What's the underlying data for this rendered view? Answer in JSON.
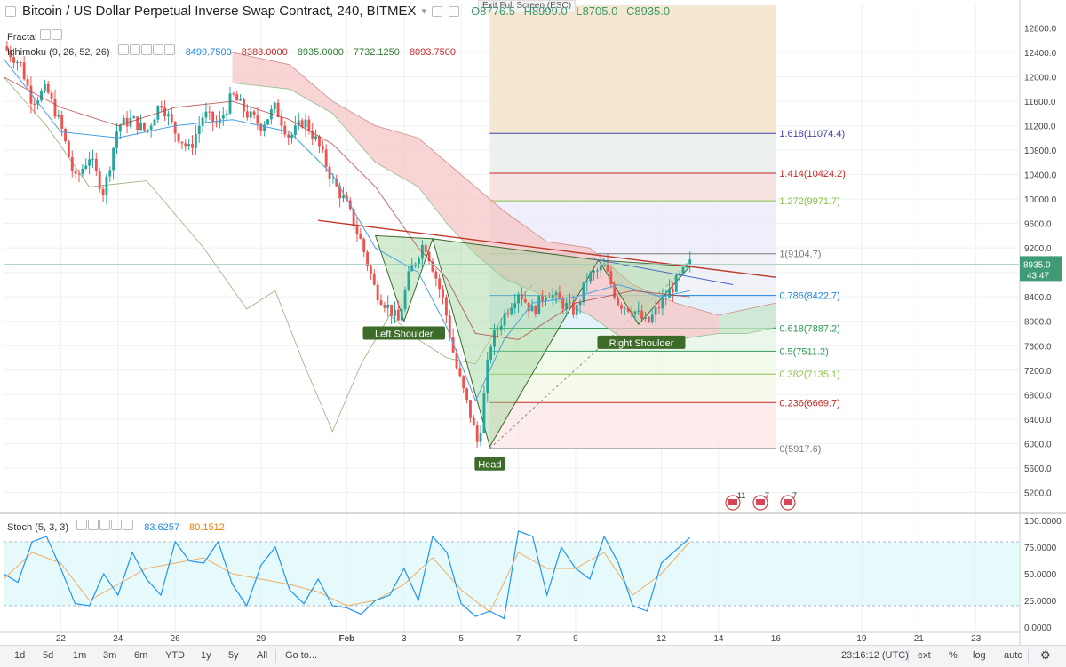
{
  "header": {
    "title": "Bitcoin / US Dollar Perpetual Inverse Swap Contract, 240, BITMEX",
    "ohlc": {
      "o": "O8776.5",
      "h": "H8999.0",
      "l": "L8705.0",
      "c": "C8935.0"
    },
    "exit_fullscreen": "Exit Full Screen (ESC)"
  },
  "indicators": {
    "fractal": "Fractal",
    "ichimoku": {
      "label": "Ichimoku (9, 26, 52, 26)",
      "values": [
        "8499.7500",
        "8388.0000",
        "8935.0000",
        "7732.1250",
        "8093.7500"
      ]
    },
    "stoch": {
      "label": "Stoch (5, 3, 3)",
      "values": [
        "83.6257",
        "80.1512"
      ]
    }
  },
  "colors": {
    "up": "#26a69a",
    "down": "#ef5350",
    "tenkan": "#4aa0e0",
    "kijun": "#b0383a",
    "chikou": "#7a9a5a",
    "cloud_bull": "#c8e6c9",
    "cloud_bear": "#f6c6c6",
    "stoch_k": "#2196f3",
    "stoch_d": "#f57c00",
    "neckline": "#c0392b",
    "pattern": "#3a6a2a"
  },
  "chart_data": {
    "type": "candlestick",
    "title": "Bitcoin / US Dollar Perpetual Inverse Swap Contract, 240, BITMEX",
    "ylim": [
      4900,
      13200
    ],
    "y_ticks": [
      "12800.0",
      "12400.0",
      "12000.0",
      "11600.0",
      "11200.0",
      "10800.0",
      "10400.0",
      "10000.0",
      "9600.0",
      "9200.0",
      "8800.0",
      "8400.0",
      "8000.0",
      "7600.0",
      "7200.0",
      "6800.0",
      "6400.0",
      "6000.0",
      "5600.0",
      "5200.0"
    ],
    "x_range": [
      20,
      25
    ],
    "x_ticks": [
      {
        "x": 22,
        "label": "22"
      },
      {
        "x": 24,
        "label": "24"
      },
      {
        "x": 26,
        "label": "26"
      },
      {
        "x": 29,
        "label": "29"
      },
      {
        "x": 32,
        "label": "Feb"
      },
      {
        "x": 34,
        "label": "3"
      },
      {
        "x": 36,
        "label": "5"
      },
      {
        "x": 38,
        "label": "7"
      },
      {
        "x": 40,
        "label": "9"
      },
      {
        "x": 43,
        "label": "12"
      },
      {
        "x": 45,
        "label": "14"
      },
      {
        "x": 47,
        "label": "16"
      },
      {
        "x": 50,
        "label": "19"
      },
      {
        "x": 52,
        "label": "21"
      },
      {
        "x": 54,
        "label": "23"
      }
    ],
    "current_price": {
      "label": "8935.0",
      "value": 8935,
      "countdown": "43:47"
    },
    "price_path": [
      [
        20.0,
        12500
      ],
      [
        20.6,
        12200
      ],
      [
        21.0,
        11600
      ],
      [
        21.5,
        11800
      ],
      [
        22.0,
        11200
      ],
      [
        22.5,
        10300
      ],
      [
        23.0,
        10700
      ],
      [
        23.5,
        10100
      ],
      [
        24.0,
        11200
      ],
      [
        24.5,
        11300
      ],
      [
        25.0,
        11100
      ],
      [
        25.5,
        11600
      ],
      [
        26.0,
        11100
      ],
      [
        26.5,
        10800
      ],
      [
        27.0,
        11400
      ],
      [
        27.5,
        11200
      ],
      [
        28.0,
        11700
      ],
      [
        28.5,
        11400
      ],
      [
        29.0,
        11200
      ],
      [
        29.5,
        11500
      ],
      [
        30.0,
        11000
      ],
      [
        30.5,
        11300
      ],
      [
        31.0,
        10900
      ],
      [
        31.5,
        10300
      ],
      [
        32.0,
        9900
      ],
      [
        32.5,
        9300
      ],
      [
        33.0,
        8500
      ],
      [
        33.5,
        8200
      ],
      [
        33.8,
        8000
      ],
      [
        34.2,
        8800
      ],
      [
        34.7,
        9300
      ],
      [
        35.0,
        8900
      ],
      [
        35.4,
        8300
      ],
      [
        35.8,
        7300
      ],
      [
        36.3,
        6500
      ],
      [
        36.6,
        5950
      ],
      [
        37.0,
        7600
      ],
      [
        37.5,
        8100
      ],
      [
        38.0,
        8500
      ],
      [
        38.5,
        8150
      ],
      [
        39.0,
        8500
      ],
      [
        39.5,
        8300
      ],
      [
        40.0,
        8150
      ],
      [
        40.4,
        8700
      ],
      [
        41.0,
        8900
      ],
      [
        41.5,
        8300
      ],
      [
        42.0,
        8200
      ],
      [
        42.5,
        7950
      ],
      [
        43.0,
        8300
      ],
      [
        43.6,
        8700
      ],
      [
        44.0,
        8935
      ]
    ],
    "ichimoku": {
      "tenkan": [
        [
          20,
          12300
        ],
        [
          22,
          11100
        ],
        [
          24,
          11000
        ],
        [
          26,
          11200
        ],
        [
          28,
          11300
        ],
        [
          30,
          11100
        ],
        [
          31.5,
          10400
        ],
        [
          33,
          9200
        ],
        [
          34.5,
          8800
        ],
        [
          35.5,
          7900
        ],
        [
          36.5,
          6700
        ],
        [
          37.5,
          7700
        ],
        [
          38.5,
          8300
        ],
        [
          40,
          8400
        ],
        [
          41.5,
          8600
        ],
        [
          43,
          8400
        ],
        [
          44,
          8500
        ]
      ],
      "kijun": [
        [
          20,
          12000
        ],
        [
          22,
          11500
        ],
        [
          24,
          11200
        ],
        [
          26,
          11500
        ],
        [
          28,
          11600
        ],
        [
          30,
          11300
        ],
        [
          31.5,
          10900
        ],
        [
          33,
          10200
        ],
        [
          34.5,
          9200
        ],
        [
          35.5,
          8700
        ],
        [
          36.5,
          7800
        ],
        [
          38,
          7700
        ],
        [
          40,
          8300
        ],
        [
          42,
          8500
        ],
        [
          44,
          8400
        ]
      ],
      "chikou": [
        [
          20,
          12000
        ],
        [
          21.5,
          11200
        ],
        [
          23,
          10200
        ],
        [
          25,
          10300
        ],
        [
          27,
          9200
        ],
        [
          28.5,
          8200
        ],
        [
          29.5,
          8500
        ],
        [
          30.5,
          7300
        ],
        [
          31.5,
          6200
        ],
        [
          32.5,
          7300
        ],
        [
          33.5,
          8100
        ],
        [
          34.5,
          7700
        ],
        [
          35.5,
          7400
        ],
        [
          36.5,
          7300
        ],
        [
          37.5,
          8100
        ],
        [
          38.5,
          8600
        ]
      ],
      "cloud": [
        [
          28,
          12400,
          11900
        ],
        [
          30,
          12200,
          11800
        ],
        [
          31.5,
          11600,
          11400
        ],
        [
          33,
          11200,
          10600
        ],
        [
          34.5,
          11000,
          10200
        ],
        [
          35.5,
          10600,
          9600
        ],
        [
          36.5,
          10200,
          9100
        ],
        [
          37.5,
          9800,
          8700
        ],
        [
          39,
          9300,
          8400
        ],
        [
          40.5,
          9200,
          8100
        ],
        [
          42,
          8600,
          7600
        ],
        [
          43.5,
          8300,
          7700
        ],
        [
          45,
          8100,
          7800
        ],
        [
          46,
          8200,
          7800
        ],
        [
          47,
          8300,
          7900
        ]
      ]
    },
    "fib_retracement": {
      "x_start": 37,
      "x_end": 47,
      "levels": [
        {
          "ratio": "1.618",
          "value": 11074.4,
          "label": "1.618(11074.4)",
          "color": "#3f3faa"
        },
        {
          "ratio": "1.414",
          "value": 10424.2,
          "label": "1.414(10424.2)",
          "color": "#c62828"
        },
        {
          "ratio": "1.272",
          "value": 9971.7,
          "label": "1.272(9971.7)",
          "color": "#8bc34a"
        },
        {
          "ratio": "1",
          "value": 9104.7,
          "label": "1(9104.7)",
          "color": "#777777"
        },
        {
          "ratio": "0.786",
          "value": 8422.7,
          "label": "0.786(8422.7)",
          "color": "#1e88e5"
        },
        {
          "ratio": "0.618",
          "value": 7887.2,
          "label": "0.618(7887.2)",
          "color": "#2e9a5a"
        },
        {
          "ratio": "0.5",
          "value": 7511.2,
          "label": "0.5(7511.2)",
          "color": "#2e9a5a"
        },
        {
          "ratio": "0.382",
          "value": 7135.1,
          "label": "0.382(7135.1)",
          "color": "#8bc34a"
        },
        {
          "ratio": "0.236",
          "value": 6669.7,
          "label": "0.236(6669.7)",
          "color": "#c62828"
        },
        {
          "ratio": "0",
          "value": 5917.6,
          "label": "0(5917.6)",
          "color": "#777777"
        }
      ]
    },
    "pattern": {
      "name": "inverse head and shoulders",
      "neckline": [
        [
          31.0,
          9650
        ],
        [
          47.0,
          8720
        ]
      ],
      "shoulder_left_points": [
        [
          33.0,
          9400
        ],
        [
          34.0,
          8000
        ],
        [
          35.0,
          9350
        ]
      ],
      "head_points": [
        [
          35.0,
          9350
        ],
        [
          37.0,
          5950
        ],
        [
          40.8,
          9000
        ]
      ],
      "shoulder_right_points": [
        [
          40.8,
          9000
        ],
        [
          42.2,
          7950
        ],
        [
          44.0,
          8900
        ]
      ],
      "labels": [
        {
          "text": "Left Shoulder",
          "x": 34.0,
          "y": 7800
        },
        {
          "text": "Head",
          "x": 37.0,
          "y": 5660
        },
        {
          "text": "Right Shoulder",
          "x": 42.3,
          "y": 7650
        }
      ]
    },
    "stoch": {
      "ylim": [
        -5,
        105
      ],
      "y_ticks": [
        "100.0000",
        "75.0000",
        "50.0000",
        "25.0000",
        "0.0000"
      ],
      "bands": [
        80,
        20
      ],
      "k": [
        [
          20,
          50
        ],
        [
          20.5,
          42
        ],
        [
          21,
          80
        ],
        [
          21.5,
          85
        ],
        [
          22,
          55
        ],
        [
          22.5,
          22
        ],
        [
          23,
          20
        ],
        [
          23.5,
          50
        ],
        [
          24,
          30
        ],
        [
          24.5,
          70
        ],
        [
          25,
          45
        ],
        [
          25.5,
          30
        ],
        [
          26,
          80
        ],
        [
          26.5,
          62
        ],
        [
          27,
          60
        ],
        [
          27.5,
          80
        ],
        [
          28,
          40
        ],
        [
          28.5,
          20
        ],
        [
          29,
          58
        ],
        [
          29.5,
          75
        ],
        [
          30,
          35
        ],
        [
          30.5,
          22
        ],
        [
          31,
          45
        ],
        [
          31.5,
          20
        ],
        [
          32,
          18
        ],
        [
          32.5,
          12
        ],
        [
          33,
          25
        ],
        [
          33.5,
          30
        ],
        [
          34,
          55
        ],
        [
          34.5,
          25
        ],
        [
          35,
          85
        ],
        [
          35.5,
          70
        ],
        [
          36,
          22
        ],
        [
          36.5,
          10
        ],
        [
          37,
          15
        ],
        [
          37.5,
          8
        ],
        [
          38,
          90
        ],
        [
          38.5,
          85
        ],
        [
          39,
          30
        ],
        [
          39.5,
          75
        ],
        [
          40,
          55
        ],
        [
          40.5,
          45
        ],
        [
          41,
          85
        ],
        [
          41.5,
          60
        ],
        [
          42,
          20
        ],
        [
          42.5,
          15
        ],
        [
          43,
          60
        ],
        [
          43.5,
          72
        ],
        [
          44,
          84
        ]
      ],
      "d": [
        [
          20,
          45
        ],
        [
          21,
          70
        ],
        [
          22,
          60
        ],
        [
          23,
          25
        ],
        [
          24,
          40
        ],
        [
          25,
          55
        ],
        [
          26,
          60
        ],
        [
          27,
          65
        ],
        [
          28,
          50
        ],
        [
          29,
          45
        ],
        [
          30,
          40
        ],
        [
          31,
          33
        ],
        [
          32,
          20
        ],
        [
          33,
          25
        ],
        [
          34,
          40
        ],
        [
          35,
          65
        ],
        [
          36,
          35
        ],
        [
          37,
          14
        ],
        [
          38,
          70
        ],
        [
          39,
          55
        ],
        [
          40,
          55
        ],
        [
          41,
          70
        ],
        [
          42,
          30
        ],
        [
          43,
          50
        ],
        [
          44,
          80
        ]
      ]
    }
  },
  "markers": [
    {
      "icon": "us-flag-icon",
      "count": "11",
      "x": 825
    },
    {
      "icon": "us-flag-icon",
      "count": "7",
      "x": 856
    },
    {
      "icon": "us-flag-icon",
      "count": "7",
      "x": 887
    }
  ],
  "toolbar": {
    "ranges": [
      "1d",
      "5d",
      "1m",
      "3m",
      "6m",
      "YTD",
      "1y",
      "5y",
      "All"
    ],
    "goto": "Go to...",
    "time": "23:16:12 (UTC)",
    "ext": "ext",
    "percent": "%",
    "log": "log",
    "auto": "auto"
  }
}
